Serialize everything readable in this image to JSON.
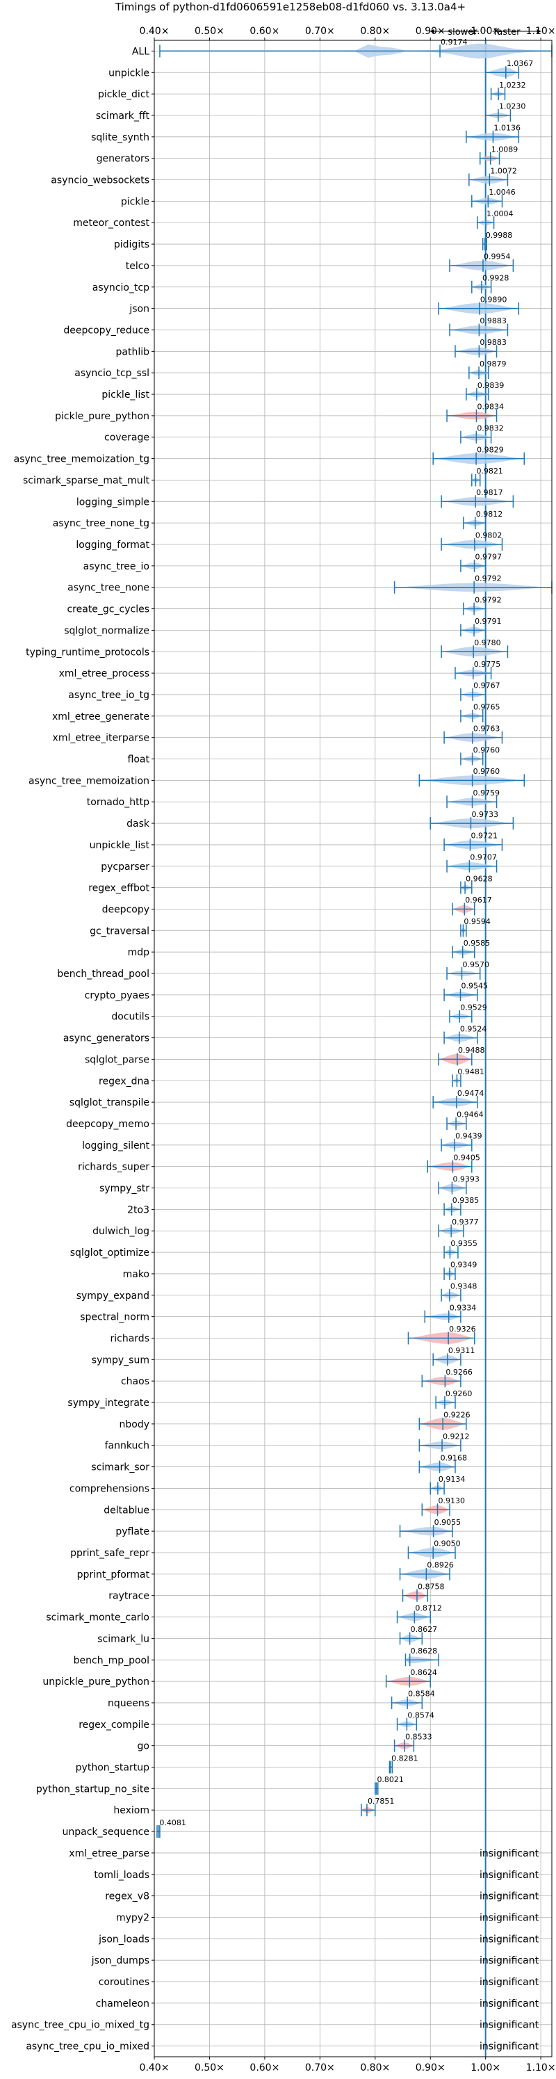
{
  "chart_data": {
    "type": "violin",
    "title": "Timings of python-d1fd0606591e1258eb08-d1fd060 vs. 3.13.0a4+",
    "xlabel": "",
    "ylabel": "",
    "xlim": [
      0.4,
      1.12
    ],
    "x_ticks": [
      0.4,
      0.5,
      0.6,
      0.7,
      0.8,
      0.9,
      1.0,
      1.1
    ],
    "x_tick_labels": [
      "0.40×",
      "0.50×",
      "0.60×",
      "0.70×",
      "0.80×",
      "0.90×",
      "1.00×",
      "1.10×"
    ],
    "slower_label": "slower",
    "faster_label": "faster",
    "insignificant_label": "insignificant",
    "grid": true,
    "colors": {
      "normal": "#b7d0ea",
      "slower": "#f5b4b4",
      "line": "#1f77b4"
    },
    "rows": [
      {
        "name": "ALL",
        "value": 0.9174,
        "min": 0.41,
        "max": 1.12,
        "w": 0.2,
        "color": "normal",
        "shape": "all"
      },
      {
        "name": "unpickle",
        "value": 1.0367,
        "min": 1.0,
        "max": 1.06,
        "w": 0.5,
        "color": "normal"
      },
      {
        "name": "pickle_dict",
        "value": 1.0232,
        "min": 1.01,
        "max": 1.035,
        "w": 0.25,
        "color": "normal"
      },
      {
        "name": "scimark_fft",
        "value": 1.023,
        "min": 1.0,
        "max": 1.045,
        "w": 0.3,
        "color": "normal"
      },
      {
        "name": "sqlite_synth",
        "value": 1.0136,
        "min": 0.965,
        "max": 1.06,
        "w": 0.4,
        "color": "normal"
      },
      {
        "name": "generators",
        "value": 1.0089,
        "min": 0.99,
        "max": 1.025,
        "w": 0.3,
        "color": "slower"
      },
      {
        "name": "asyncio_websockets",
        "value": 1.0072,
        "min": 0.97,
        "max": 1.04,
        "w": 0.4,
        "color": "normal"
      },
      {
        "name": "pickle",
        "value": 1.0046,
        "min": 0.975,
        "max": 1.03,
        "w": 0.35,
        "color": "normal"
      },
      {
        "name": "meteor_contest",
        "value": 1.0004,
        "min": 0.985,
        "max": 1.015,
        "w": 0.3,
        "color": "normal"
      },
      {
        "name": "pidigits",
        "value": 0.9988,
        "min": 0.995,
        "max": 1.002,
        "w": 0.1,
        "color": "normal"
      },
      {
        "name": "telco",
        "value": 0.9954,
        "min": 0.935,
        "max": 1.05,
        "w": 0.5,
        "color": "normal"
      },
      {
        "name": "asyncio_tcp",
        "value": 0.9928,
        "min": 0.975,
        "max": 1.01,
        "w": 0.3,
        "color": "normal"
      },
      {
        "name": "json",
        "value": 0.989,
        "min": 0.915,
        "max": 1.06,
        "w": 0.55,
        "color": "normal"
      },
      {
        "name": "deepcopy_reduce",
        "value": 0.9883,
        "min": 0.935,
        "max": 1.04,
        "w": 0.45,
        "color": "normal"
      },
      {
        "name": "pathlib",
        "value": 0.9883,
        "min": 0.945,
        "max": 1.02,
        "w": 0.4,
        "color": "normal"
      },
      {
        "name": "asyncio_tcp_ssl",
        "value": 0.9879,
        "min": 0.97,
        "max": 1.005,
        "w": 0.3,
        "color": "normal"
      },
      {
        "name": "pickle_list",
        "value": 0.9839,
        "min": 0.965,
        "max": 1.005,
        "w": 0.3,
        "color": "normal"
      },
      {
        "name": "pickle_pure_python",
        "value": 0.9834,
        "min": 0.93,
        "max": 1.02,
        "w": 0.4,
        "color": "slower"
      },
      {
        "name": "coverage",
        "value": 0.9832,
        "min": 0.955,
        "max": 1.01,
        "w": 0.35,
        "color": "normal"
      },
      {
        "name": "async_tree_memoization_tg",
        "value": 0.9829,
        "min": 0.905,
        "max": 1.07,
        "w": 0.55,
        "color": "normal"
      },
      {
        "name": "scimark_sparse_mat_mult",
        "value": 0.9821,
        "min": 0.975,
        "max": 0.99,
        "w": 0.25,
        "color": "normal"
      },
      {
        "name": "logging_simple",
        "value": 0.9817,
        "min": 0.92,
        "max": 1.05,
        "w": 0.45,
        "color": "normal"
      },
      {
        "name": "async_tree_none_tg",
        "value": 0.9812,
        "min": 0.96,
        "max": 1.0,
        "w": 0.3,
        "color": "normal"
      },
      {
        "name": "logging_format",
        "value": 0.9802,
        "min": 0.92,
        "max": 1.03,
        "w": 0.45,
        "color": "normal"
      },
      {
        "name": "async_tree_io",
        "value": 0.9797,
        "min": 0.955,
        "max": 1.0,
        "w": 0.35,
        "color": "normal"
      },
      {
        "name": "async_tree_none",
        "value": 0.9792,
        "min": 0.835,
        "max": 1.12,
        "w": 0.45,
        "color": "normal"
      },
      {
        "name": "create_gc_cycles",
        "value": 0.9792,
        "min": 0.96,
        "max": 1.0,
        "w": 0.3,
        "color": "normal"
      },
      {
        "name": "sqlglot_normalize",
        "value": 0.9791,
        "min": 0.955,
        "max": 1.0,
        "w": 0.35,
        "color": "normal"
      },
      {
        "name": "typing_runtime_protocols",
        "value": 0.978,
        "min": 0.92,
        "max": 1.04,
        "w": 0.5,
        "color": "normal"
      },
      {
        "name": "xml_etree_process",
        "value": 0.9775,
        "min": 0.945,
        "max": 1.01,
        "w": 0.35,
        "color": "normal"
      },
      {
        "name": "async_tree_io_tg",
        "value": 0.9767,
        "min": 0.955,
        "max": 1.0,
        "w": 0.3,
        "color": "normal"
      },
      {
        "name": "xml_etree_generate",
        "value": 0.9765,
        "min": 0.955,
        "max": 0.995,
        "w": 0.3,
        "color": "normal"
      },
      {
        "name": "xml_etree_iterparse",
        "value": 0.9763,
        "min": 0.925,
        "max": 1.03,
        "w": 0.45,
        "color": "normal"
      },
      {
        "name": "float",
        "value": 0.976,
        "min": 0.955,
        "max": 0.995,
        "w": 0.3,
        "color": "normal"
      },
      {
        "name": "async_tree_memoization",
        "value": 0.976,
        "min": 0.88,
        "max": 1.07,
        "w": 0.5,
        "color": "normal"
      },
      {
        "name": "tornado_http",
        "value": 0.9759,
        "min": 0.93,
        "max": 1.02,
        "w": 0.4,
        "color": "normal"
      },
      {
        "name": "dask",
        "value": 0.9733,
        "min": 0.9,
        "max": 1.05,
        "w": 0.5,
        "color": "normal"
      },
      {
        "name": "unpickle_list",
        "value": 0.9721,
        "min": 0.925,
        "max": 1.03,
        "w": 0.45,
        "color": "normal"
      },
      {
        "name": "pycparser",
        "value": 0.9707,
        "min": 0.93,
        "max": 1.02,
        "w": 0.4,
        "color": "normal"
      },
      {
        "name": "regex_effbot",
        "value": 0.9628,
        "min": 0.955,
        "max": 0.975,
        "w": 0.3,
        "color": "normal"
      },
      {
        "name": "deepcopy",
        "value": 0.9617,
        "min": 0.94,
        "max": 0.98,
        "w": 0.4,
        "color": "slower"
      },
      {
        "name": "gc_traversal",
        "value": 0.9594,
        "min": 0.955,
        "max": 0.965,
        "w": 0.25,
        "color": "normal"
      },
      {
        "name": "mdp",
        "value": 0.9585,
        "min": 0.94,
        "max": 0.98,
        "w": 0.3,
        "color": "normal"
      },
      {
        "name": "bench_thread_pool",
        "value": 0.957,
        "min": 0.93,
        "max": 0.99,
        "w": 0.3,
        "color": "normal"
      },
      {
        "name": "crypto_pyaes",
        "value": 0.9545,
        "min": 0.925,
        "max": 0.985,
        "w": 0.3,
        "color": "normal"
      },
      {
        "name": "docutils",
        "value": 0.9529,
        "min": 0.935,
        "max": 0.975,
        "w": 0.3,
        "color": "normal"
      },
      {
        "name": "async_generators",
        "value": 0.9524,
        "min": 0.925,
        "max": 0.985,
        "w": 0.4,
        "color": "normal"
      },
      {
        "name": "sqlglot_parse",
        "value": 0.9488,
        "min": 0.915,
        "max": 0.975,
        "w": 0.55,
        "color": "slower"
      },
      {
        "name": "regex_dna",
        "value": 0.9481,
        "min": 0.94,
        "max": 0.955,
        "w": 0.25,
        "color": "normal"
      },
      {
        "name": "sqlglot_transpile",
        "value": 0.9474,
        "min": 0.905,
        "max": 0.985,
        "w": 0.45,
        "color": "normal"
      },
      {
        "name": "deepcopy_memo",
        "value": 0.9464,
        "min": 0.93,
        "max": 0.965,
        "w": 0.3,
        "color": "normal"
      },
      {
        "name": "logging_silent",
        "value": 0.9439,
        "min": 0.92,
        "max": 0.975,
        "w": 0.35,
        "color": "normal"
      },
      {
        "name": "richards_super",
        "value": 0.9405,
        "min": 0.895,
        "max": 0.975,
        "w": 0.45,
        "color": "slower"
      },
      {
        "name": "sympy_str",
        "value": 0.9393,
        "min": 0.915,
        "max": 0.965,
        "w": 0.4,
        "color": "normal"
      },
      {
        "name": "2to3",
        "value": 0.9385,
        "min": 0.925,
        "max": 0.955,
        "w": 0.3,
        "color": "normal"
      },
      {
        "name": "dulwich_log",
        "value": 0.9377,
        "min": 0.915,
        "max": 0.96,
        "w": 0.35,
        "color": "normal"
      },
      {
        "name": "sqlglot_optimize",
        "value": 0.9355,
        "min": 0.925,
        "max": 0.95,
        "w": 0.3,
        "color": "normal"
      },
      {
        "name": "mako",
        "value": 0.9349,
        "min": 0.925,
        "max": 0.945,
        "w": 0.3,
        "color": "normal"
      },
      {
        "name": "sympy_expand",
        "value": 0.9348,
        "min": 0.92,
        "max": 0.955,
        "w": 0.35,
        "color": "normal"
      },
      {
        "name": "spectral_norm",
        "value": 0.9334,
        "min": 0.89,
        "max": 0.955,
        "w": 0.35,
        "color": "normal"
      },
      {
        "name": "richards",
        "value": 0.9326,
        "min": 0.86,
        "max": 0.98,
        "w": 0.6,
        "color": "slower"
      },
      {
        "name": "sympy_sum",
        "value": 0.9311,
        "min": 0.905,
        "max": 0.955,
        "w": 0.45,
        "color": "normal"
      },
      {
        "name": "chaos",
        "value": 0.9266,
        "min": 0.885,
        "max": 0.955,
        "w": 0.45,
        "color": "slower"
      },
      {
        "name": "sympy_integrate",
        "value": 0.926,
        "min": 0.91,
        "max": 0.945,
        "w": 0.3,
        "color": "normal"
      },
      {
        "name": "nbody",
        "value": 0.9226,
        "min": 0.88,
        "max": 0.965,
        "w": 0.6,
        "color": "slower"
      },
      {
        "name": "fannkuch",
        "value": 0.9212,
        "min": 0.88,
        "max": 0.955,
        "w": 0.4,
        "color": "normal"
      },
      {
        "name": "scimark_sor",
        "value": 0.9168,
        "min": 0.88,
        "max": 0.945,
        "w": 0.45,
        "color": "normal"
      },
      {
        "name": "comprehensions",
        "value": 0.9134,
        "min": 0.9,
        "max": 0.925,
        "w": 0.3,
        "color": "normal"
      },
      {
        "name": "deltablue",
        "value": 0.913,
        "min": 0.885,
        "max": 0.935,
        "w": 0.45,
        "color": "slower"
      },
      {
        "name": "pyflate",
        "value": 0.9055,
        "min": 0.845,
        "max": 0.94,
        "w": 0.45,
        "color": "normal"
      },
      {
        "name": "pprint_safe_repr",
        "value": 0.905,
        "min": 0.86,
        "max": 0.945,
        "w": 0.5,
        "color": "normal"
      },
      {
        "name": "pprint_pformat",
        "value": 0.8926,
        "min": 0.845,
        "max": 0.935,
        "w": 0.5,
        "color": "normal"
      },
      {
        "name": "raytrace",
        "value": 0.8758,
        "min": 0.85,
        "max": 0.895,
        "w": 0.45,
        "color": "slower"
      },
      {
        "name": "scimark_monte_carlo",
        "value": 0.8712,
        "min": 0.84,
        "max": 0.9,
        "w": 0.4,
        "color": "normal"
      },
      {
        "name": "scimark_lu",
        "value": 0.8627,
        "min": 0.845,
        "max": 0.885,
        "w": 0.4,
        "color": "normal"
      },
      {
        "name": "bench_mp_pool",
        "value": 0.8628,
        "min": 0.855,
        "max": 0.915,
        "w": 0.35,
        "color": "normal"
      },
      {
        "name": "unpickle_pure_python",
        "value": 0.8624,
        "min": 0.82,
        "max": 0.9,
        "w": 0.45,
        "color": "slower"
      },
      {
        "name": "nqueens",
        "value": 0.8584,
        "min": 0.83,
        "max": 0.885,
        "w": 0.35,
        "color": "normal"
      },
      {
        "name": "regex_compile",
        "value": 0.8574,
        "min": 0.84,
        "max": 0.875,
        "w": 0.3,
        "color": "normal"
      },
      {
        "name": "go",
        "value": 0.8533,
        "min": 0.835,
        "max": 0.87,
        "w": 0.35,
        "color": "slower"
      },
      {
        "name": "python_startup",
        "value": 0.8281,
        "min": 0.826,
        "max": 0.831,
        "w": 0.15,
        "color": "normal"
      },
      {
        "name": "python_startup_no_site",
        "value": 0.8021,
        "min": 0.8,
        "max": 0.805,
        "w": 0.15,
        "color": "normal"
      },
      {
        "name": "hexiom",
        "value": 0.7851,
        "min": 0.775,
        "max": 0.8,
        "w": 0.3,
        "color": "slower"
      },
      {
        "name": "unpack_sequence",
        "value": 0.4081,
        "min": 0.405,
        "max": 0.41,
        "w": 0.15,
        "color": "normal"
      },
      {
        "name": "xml_etree_parse",
        "insignificant": true
      },
      {
        "name": "tomli_loads",
        "insignificant": true
      },
      {
        "name": "regex_v8",
        "insignificant": true
      },
      {
        "name": "mypy2",
        "insignificant": true
      },
      {
        "name": "json_loads",
        "insignificant": true
      },
      {
        "name": "json_dumps",
        "insignificant": true
      },
      {
        "name": "coroutines",
        "insignificant": true
      },
      {
        "name": "chameleon",
        "insignificant": true
      },
      {
        "name": "async_tree_cpu_io_mixed_tg",
        "insignificant": true
      },
      {
        "name": "async_tree_cpu_io_mixed",
        "insignificant": true
      }
    ]
  }
}
